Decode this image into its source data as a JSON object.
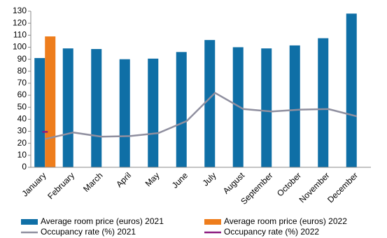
{
  "chart_data": {
    "type": "bar_line",
    "categories": [
      "January",
      "February",
      "March",
      "April",
      "May",
      "June",
      "July",
      "August",
      "September",
      "October",
      "November",
      "December"
    ],
    "series": [
      {
        "name": "Average room price (euros) 2021",
        "kind": "bar",
        "color": "#0f6fa6",
        "values": [
          91,
          99,
          98.5,
          90,
          90.5,
          96,
          106,
          100,
          99,
          101.5,
          107.5,
          128
        ]
      },
      {
        "name": "Average room price (euros) 2022",
        "kind": "bar",
        "color": "#ee7d1c",
        "values": [
          109,
          null,
          null,
          null,
          null,
          null,
          null,
          null,
          null,
          null,
          null,
          null
        ]
      },
      {
        "name": "Occupancy rate (%) 2021",
        "kind": "line",
        "color": "#8f8f9f",
        "values": [
          23.5,
          29,
          25.5,
          26,
          28.5,
          38.5,
          62,
          48.5,
          46.5,
          48,
          48.5,
          42.5
        ]
      },
      {
        "name": "Occupancy rate (%) 2022",
        "kind": "line",
        "color": "#8b1a7f",
        "values": [
          29.5,
          null,
          null,
          null,
          null,
          null,
          null,
          null,
          null,
          null,
          null,
          null
        ]
      }
    ],
    "ylim": [
      0,
      130
    ],
    "yticks": [
      0,
      10,
      20,
      30,
      40,
      50,
      60,
      70,
      80,
      90,
      100,
      110,
      120,
      130
    ],
    "grid": false
  }
}
